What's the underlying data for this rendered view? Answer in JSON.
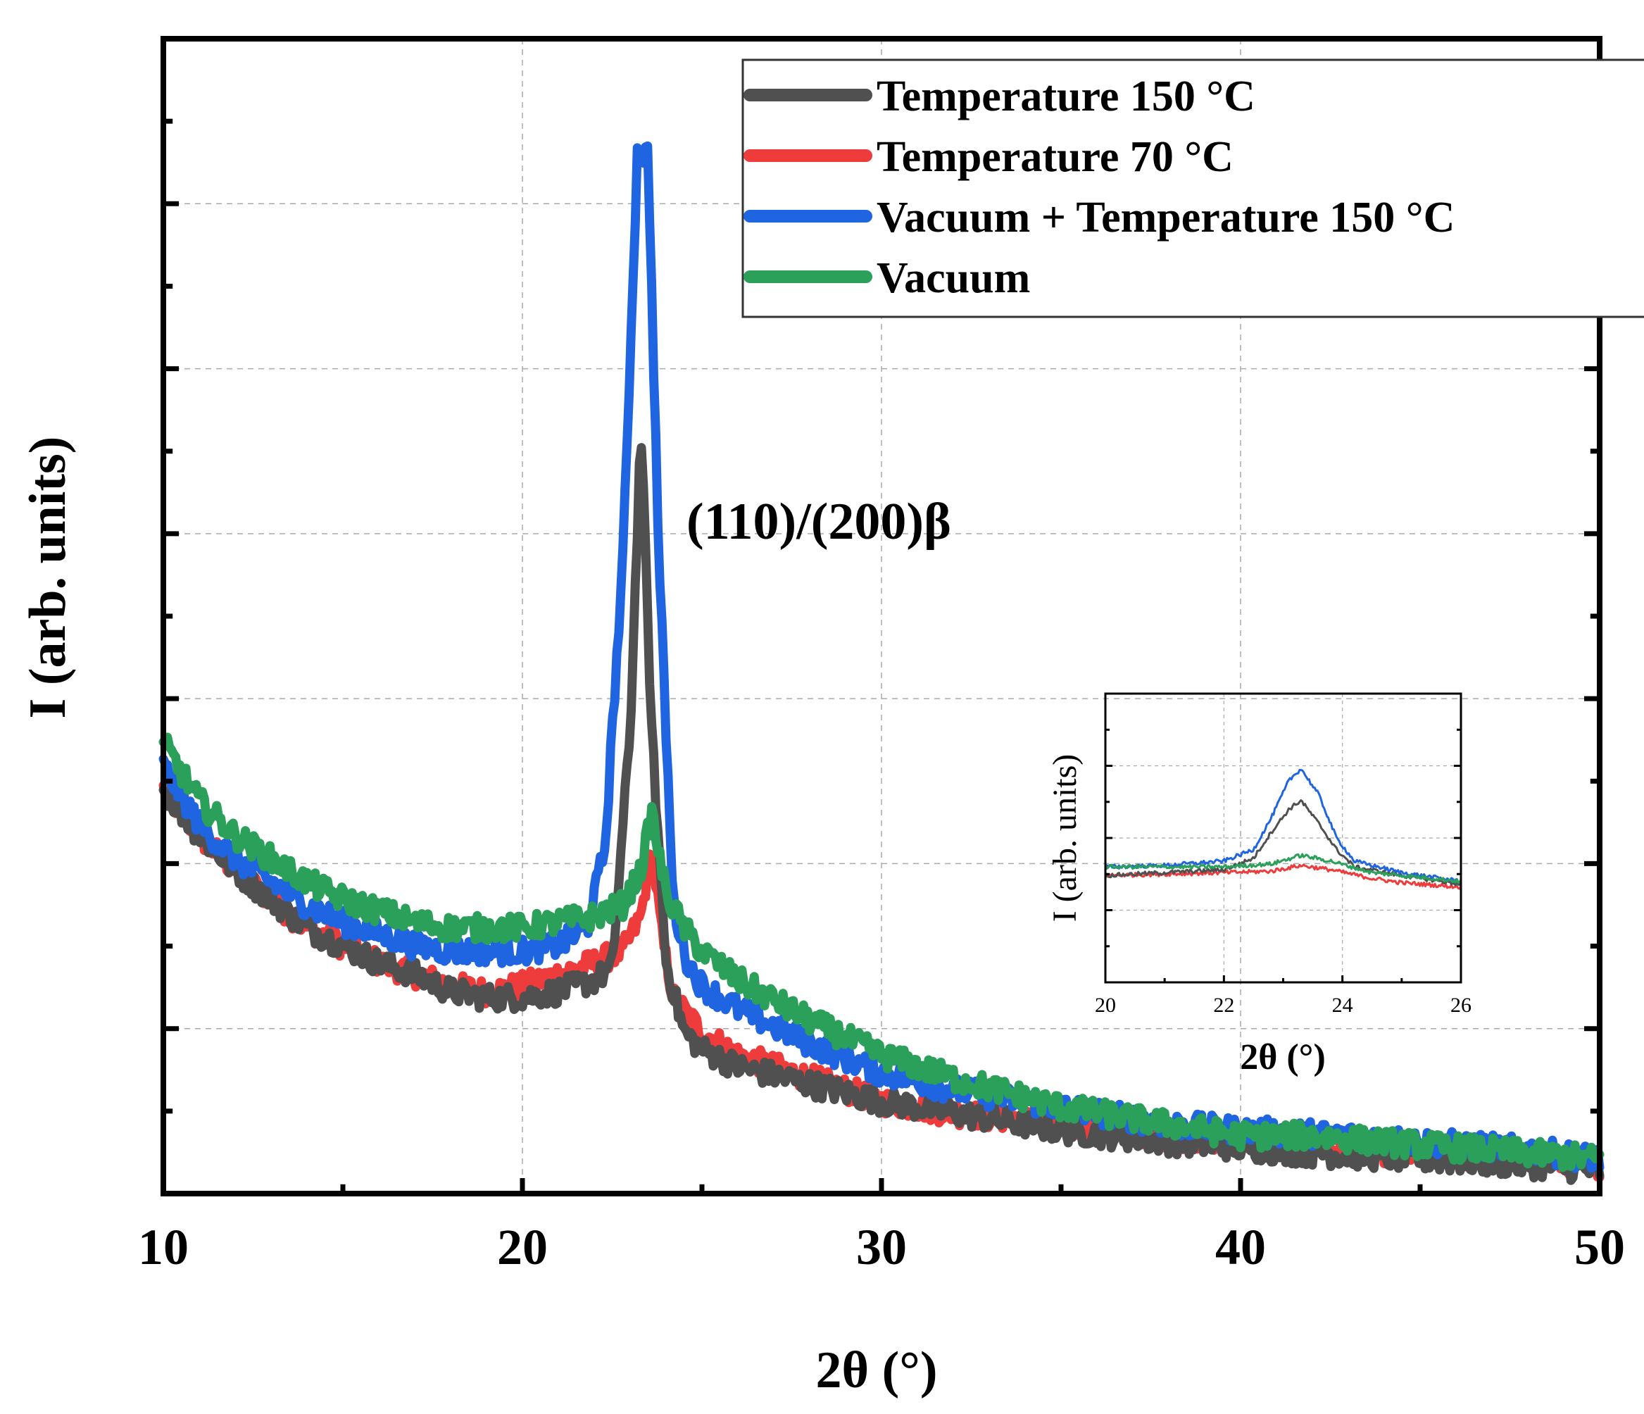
{
  "chart_data": {
    "main": {
      "type": "line",
      "xlabel": "2θ (°)",
      "ylabel": "I (arb. units)",
      "xlim": [
        10,
        50
      ],
      "ylim": [
        0,
        100
      ],
      "xticks": [
        10,
        20,
        30,
        40,
        50
      ],
      "xtick_labels": [
        "10",
        "20",
        "30",
        "40",
        "50"
      ],
      "grid": true,
      "legend_position": "top-right",
      "annotation": "(110)/(200)β",
      "annotation_x": 24.6,
      "annotation_y": 68,
      "series": [
        {
          "name": "Temperature 150 °C",
          "color": "#505050",
          "points": [
            [
              10,
              35
            ],
            [
              11,
              31
            ],
            [
              12,
              28
            ],
            [
              13,
              25.5
            ],
            [
              14,
              23
            ],
            [
              15,
              21.5
            ],
            [
              16,
              20
            ],
            [
              17,
              19
            ],
            [
              18,
              17.5
            ],
            [
              19,
              17
            ],
            [
              20,
              17
            ],
            [
              21,
              17.5
            ],
            [
              22,
              18.5
            ],
            [
              22.5,
              19.5
            ],
            [
              23,
              40
            ],
            [
              23.3,
              66.5
            ],
            [
              23.6,
              40
            ],
            [
              24,
              20
            ],
            [
              24.5,
              14
            ],
            [
              25,
              12.5
            ],
            [
              26,
              11
            ],
            [
              28,
              9.5
            ],
            [
              30,
              8
            ],
            [
              32,
              7
            ],
            [
              35,
              5.5
            ],
            [
              38,
              4.5
            ],
            [
              40,
              4
            ],
            [
              42,
              3.5
            ],
            [
              45,
              3
            ],
            [
              48,
              2.5
            ],
            [
              50,
              2
            ]
          ]
        },
        {
          "name": "Temperature 70 °C",
          "color": "#ee3c3c",
          "points": [
            [
              10,
              35
            ],
            [
              11,
              31
            ],
            [
              12,
              28
            ],
            [
              13,
              25.5
            ],
            [
              14,
              23
            ],
            [
              15,
              21.5
            ],
            [
              16,
              20
            ],
            [
              17,
              19
            ],
            [
              18,
              18
            ],
            [
              19,
              17.5
            ],
            [
              20,
              18
            ],
            [
              21,
              19
            ],
            [
              22,
              20
            ],
            [
              22.8,
              21
            ],
            [
              23.3,
              24
            ],
            [
              23.6,
              30
            ],
            [
              23.9,
              22
            ],
            [
              24.2,
              17
            ],
            [
              25,
              14
            ],
            [
              26,
              12
            ],
            [
              28,
              10
            ],
            [
              30,
              8
            ],
            [
              32,
              7
            ],
            [
              35,
              6
            ],
            [
              38,
              5
            ],
            [
              40,
              4.5
            ],
            [
              42,
              4
            ],
            [
              45,
              3.5
            ],
            [
              48,
              3
            ],
            [
              50,
              2.5
            ]
          ]
        },
        {
          "name": "Vacuum + Temperature 150 °C",
          "color": "#1f64e0",
          "points": [
            [
              10,
              37
            ],
            [
              11,
              32
            ],
            [
              12,
              29
            ],
            [
              13,
              27
            ],
            [
              14,
              25
            ],
            [
              15,
              23.5
            ],
            [
              16,
              22.5
            ],
            [
              17,
              21.5
            ],
            [
              18,
              21
            ],
            [
              19,
              21
            ],
            [
              20,
              21
            ],
            [
              21,
              21.5
            ],
            [
              21.8,
              23
            ],
            [
              22.3,
              30
            ],
            [
              22.8,
              55
            ],
            [
              23.2,
              90
            ],
            [
              23.5,
              90
            ],
            [
              23.8,
              55
            ],
            [
              24.2,
              25
            ],
            [
              24.6,
              20
            ],
            [
              25,
              18
            ],
            [
              26,
              16
            ],
            [
              28,
              13
            ],
            [
              30,
              10.5
            ],
            [
              32,
              9
            ],
            [
              35,
              7.5
            ],
            [
              38,
              6
            ],
            [
              40,
              5.5
            ],
            [
              42,
              5.2
            ],
            [
              45,
              4.5
            ],
            [
              48,
              3.8
            ],
            [
              50,
              3
            ]
          ]
        },
        {
          "name": "Vacuum",
          "color": "#2aa05a",
          "points": [
            [
              10,
              39
            ],
            [
              11,
              34
            ],
            [
              12,
              31
            ],
            [
              13,
              29
            ],
            [
              14,
              27
            ],
            [
              15,
              25.5
            ],
            [
              16,
              24.5
            ],
            [
              17,
              23.5
            ],
            [
              18,
              23
            ],
            [
              19,
              23
            ],
            [
              20,
              23
            ],
            [
              21,
              23.5
            ],
            [
              22,
              24
            ],
            [
              22.8,
              25
            ],
            [
              23.3,
              28
            ],
            [
              23.6,
              33
            ],
            [
              24,
              26
            ],
            [
              24.5,
              23
            ],
            [
              25,
              21
            ],
            [
              26,
              18.5
            ],
            [
              28,
              15
            ],
            [
              30,
              12
            ],
            [
              32,
              10
            ],
            [
              35,
              7.5
            ],
            [
              38,
              6
            ],
            [
              40,
              5
            ],
            [
              42,
              5
            ],
            [
              45,
              4.2
            ],
            [
              48,
              3.5
            ],
            [
              50,
              3
            ]
          ]
        }
      ]
    },
    "inset": {
      "type": "line",
      "xlabel": "2θ (°)",
      "ylabel": "I (arb. units)",
      "xlim": [
        20,
        26
      ],
      "ylim": [
        0,
        100
      ],
      "xticks": [
        20,
        22,
        24,
        26
      ],
      "xtick_labels": [
        "20",
        "22",
        "24",
        "26"
      ],
      "grid": true,
      "series": [
        {
          "name": "Temperature 150 °C",
          "color": "#505050",
          "points": [
            [
              20,
              37
            ],
            [
              21,
              38
            ],
            [
              22,
              39
            ],
            [
              22.5,
              43
            ],
            [
              22.8,
              52
            ],
            [
              23.1,
              60
            ],
            [
              23.3,
              63
            ],
            [
              23.6,
              55
            ],
            [
              23.9,
              46
            ],
            [
              24.2,
              40
            ],
            [
              25,
              37
            ],
            [
              26,
              34
            ]
          ]
        },
        {
          "name": "Temperature 70 °C",
          "color": "#ee3c3c",
          "points": [
            [
              20,
              37
            ],
            [
              21,
              37.5
            ],
            [
              22,
              38
            ],
            [
              22.8,
              38.5
            ],
            [
              23.3,
              40.5
            ],
            [
              23.8,
              39
            ],
            [
              24.5,
              36
            ],
            [
              25,
              34.5
            ],
            [
              26,
              33
            ]
          ]
        },
        {
          "name": "Vacuum + Temperature 150 °C",
          "color": "#1f64e0",
          "points": [
            [
              20,
              40
            ],
            [
              21,
              40.5
            ],
            [
              22,
              42
            ],
            [
              22.5,
              46
            ],
            [
              22.8,
              57
            ],
            [
              23.1,
              70
            ],
            [
              23.3,
              74
            ],
            [
              23.6,
              65
            ],
            [
              23.9,
              50
            ],
            [
              24.2,
              42
            ],
            [
              25,
              38
            ],
            [
              26,
              35
            ]
          ]
        },
        {
          "name": "Vacuum",
          "color": "#2aa05a",
          "points": [
            [
              20,
              40
            ],
            [
              21,
              40
            ],
            [
              22,
              40
            ],
            [
              22.8,
              41
            ],
            [
              23.3,
              44
            ],
            [
              23.8,
              42
            ],
            [
              24.5,
              38
            ],
            [
              25,
              37
            ],
            [
              26,
              35
            ]
          ]
        }
      ]
    }
  }
}
